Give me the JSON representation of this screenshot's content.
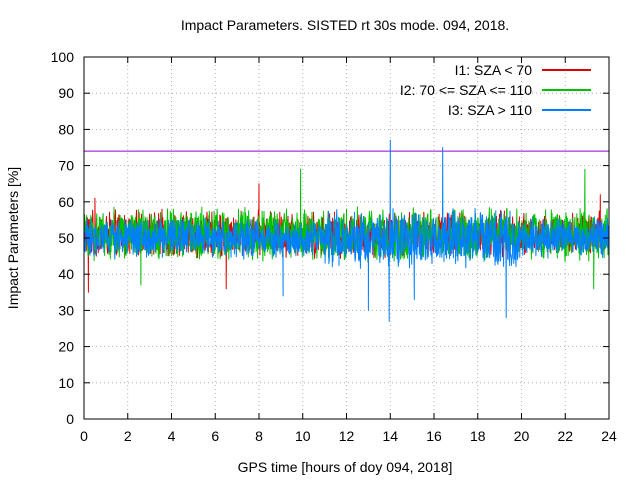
{
  "chart_data": {
    "type": "line",
    "title": "Impact Parameters. SISTED rt 30s mode. 094, 2018.",
    "xlabel": "GPS time [hours of doy 094, 2018]",
    "ylabel": "Impact Parameters [%]",
    "xlim": [
      0,
      24
    ],
    "ylim": [
      0,
      100
    ],
    "x_ticks": [
      0,
      2,
      4,
      6,
      8,
      10,
      12,
      14,
      16,
      18,
      20,
      22,
      24
    ],
    "y_ticks": [
      0,
      10,
      20,
      30,
      40,
      50,
      60,
      70,
      80,
      90,
      100
    ],
    "grid": true,
    "legend_position": "top-right",
    "reference_line": {
      "y": 74,
      "color": "#9400d3"
    },
    "series": [
      {
        "name": "I1: SZA < 70",
        "color": "#e00000",
        "mean": 51,
        "noise_range": [
          44,
          58
        ],
        "extreme_values": [
          {
            "x": 0.2,
            "y": 35
          },
          {
            "x": 0.5,
            "y": 61
          },
          {
            "x": 6.5,
            "y": 36
          },
          {
            "x": 8.0,
            "y": 65
          },
          {
            "x": 23.6,
            "y": 62
          }
        ]
      },
      {
        "name": "I2: 70 <= SZA <= 110",
        "color": "#00c000",
        "mean": 51,
        "noise_range": [
          43,
          59
        ],
        "extreme_values": [
          {
            "x": 2.6,
            "y": 37
          },
          {
            "x": 9.9,
            "y": 69
          },
          {
            "x": 22.9,
            "y": 69
          },
          {
            "x": 23.3,
            "y": 36
          }
        ]
      },
      {
        "name": "I3: SZA > 110",
        "color": "#0080ff",
        "mean": 50,
        "noise_range": [
          44,
          56
        ],
        "extreme_values": [
          {
            "x": 9.1,
            "y": 34
          },
          {
            "x": 13.0,
            "y": 30
          },
          {
            "x": 13.95,
            "y": 27
          },
          {
            "x": 14.0,
            "y": 77
          },
          {
            "x": 15.1,
            "y": 33
          },
          {
            "x": 16.4,
            "y": 75
          },
          {
            "x": 19.3,
            "y": 28
          }
        ]
      }
    ]
  }
}
